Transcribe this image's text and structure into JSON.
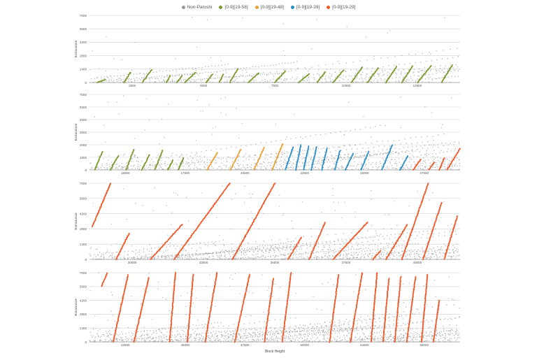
{
  "legend": [
    {
      "label": "Non-Patoshi",
      "color": "#9a9a9a"
    },
    {
      "label": "[0-9][19-58]",
      "color": "#7a9a2e"
    },
    {
      "label": "[0-9][19-48]",
      "color": "#e8a23a"
    },
    {
      "label": "[0-9][19-39]",
      "color": "#2a8fc8"
    },
    {
      "label": "[0-9][19-29]",
      "color": "#ef5a2a"
    }
  ],
  "colors": {
    "nonpatoshi": "#9a9a9a",
    "s58": "#7a9a2e",
    "s48": "#e8a23a",
    "s39": "#2a8fc8",
    "s29": "#ef5a2a",
    "grid": "#cfcfcf"
  },
  "chart_data": [
    {
      "type": "scatter",
      "xlabel": "",
      "ylabel": "Extranonce",
      "ylim": [
        0,
        7000
      ],
      "yticks": [
        "0",
        "1400",
        "2800",
        "4200",
        "5600",
        "7000"
      ],
      "xlim": [
        0,
        14000
      ],
      "xticks": [
        "2500",
        "5000",
        "7500",
        "10000",
        "12500"
      ],
      "series": [
        {
          "color_key": "s58",
          "segments": [
            [
              300,
              0,
              600,
              330
            ],
            [
              1300,
              0,
              1550,
              1050
            ],
            [
              2000,
              0,
              2350,
              1350
            ],
            [
              2900,
              0,
              3050,
              720
            ],
            [
              3300,
              0,
              3500,
              700
            ],
            [
              3600,
              0,
              4000,
              1050
            ],
            [
              4400,
              0,
              4650,
              880
            ],
            [
              4900,
              0,
              5050,
              850
            ],
            [
              5300,
              0,
              5600,
              1400
            ],
            [
              6000,
              0,
              6400,
              1000
            ],
            [
              7000,
              0,
              7400,
              1200
            ],
            [
              7900,
              0,
              8300,
              900
            ],
            [
              8600,
              0,
              8900,
              1100
            ],
            [
              9200,
              0,
              9600,
              1300
            ],
            [
              9900,
              0,
              10300,
              1600
            ],
            [
              10500,
              0,
              10900,
              1500
            ],
            [
              11200,
              0,
              11600,
              1650
            ],
            [
              11800,
              0,
              12200,
              1700
            ],
            [
              12400,
              0,
              12900,
              1750
            ],
            [
              13300,
              0,
              13700,
              1800
            ]
          ]
        }
      ]
    },
    {
      "type": "scatter",
      "xlabel": "",
      "ylabel": "Extranonce",
      "ylim": [
        0,
        7000
      ],
      "yticks": [
        "0",
        "1000",
        "2000",
        "3000",
        "4000",
        "5000",
        "7000"
      ],
      "xlim": [
        13800,
        28000
      ],
      "xticks": [
        "15000",
        "17500",
        "20000",
        "22500",
        "25000",
        "27500"
      ],
      "series": [
        {
          "color_key": "s58",
          "segments": [
            [
              14000,
              0,
              14300,
              1700
            ],
            [
              14600,
              0,
              14900,
              1300
            ],
            [
              15200,
              0,
              15500,
              1900
            ],
            [
              15800,
              0,
              16100,
              1400
            ],
            [
              16300,
              0,
              16600,
              1800
            ],
            [
              16800,
              0,
              17000,
              900
            ],
            [
              17200,
              0,
              17400,
              1100
            ]
          ]
        },
        {
          "color_key": "s48",
          "segments": [
            [
              18300,
              0,
              18700,
              1600
            ],
            [
              19200,
              0,
              19600,
              1900
            ],
            [
              20100,
              0,
              20500,
              2100
            ],
            [
              20800,
              0,
              21200,
              2400
            ]
          ]
        },
        {
          "color_key": "s39",
          "segments": [
            [
              21300,
              0,
              21600,
              2100
            ],
            [
              21700,
              0,
              21900,
              2300
            ],
            [
              22000,
              0,
              22200,
              2200
            ],
            [
              22300,
              0,
              22500,
              2100
            ],
            [
              22700,
              0,
              22900,
              2000
            ],
            [
              23200,
              0,
              23400,
              1800
            ],
            [
              23600,
              0,
              23900,
              1500
            ],
            [
              24200,
              0,
              24500,
              1700
            ],
            [
              25000,
              0,
              25400,
              2300
            ],
            [
              25700,
              0,
              26000,
              1300
            ]
          ]
        },
        {
          "color_key": "s29",
          "segments": [
            [
              26200,
              0,
              26500,
              1000
            ],
            [
              26800,
              0,
              27000,
              700
            ],
            [
              27200,
              0,
              27400,
              1100
            ],
            [
              27500,
              0,
              28000,
              2000
            ]
          ]
        }
      ]
    },
    {
      "type": "scatter",
      "xlabel": "",
      "ylabel": "Extranonce",
      "ylim": [
        0,
        7000
      ],
      "yticks": [
        "0",
        "1400",
        "2800",
        "4200",
        "5600",
        "7000"
      ],
      "xlim": [
        28000,
        42000
      ],
      "xticks": [
        "30000",
        "32500",
        "35000",
        "37500",
        "40000"
      ],
      "series": [
        {
          "color_key": "s29",
          "segments": [
            [
              28100,
              3000,
              28800,
              7000
            ],
            [
              29000,
              0,
              29500,
              2400
            ],
            [
              30300,
              0,
              31500,
              3200
            ],
            [
              31200,
              0,
              33300,
              7000
            ],
            [
              33400,
              0,
              35000,
              7000
            ],
            [
              35500,
              0,
              36000,
              2000
            ],
            [
              36300,
              0,
              36900,
              3400
            ],
            [
              37200,
              0,
              38500,
              3400
            ],
            [
              38700,
              0,
              39000,
              800
            ],
            [
              39200,
              0,
              40000,
              3200
            ],
            [
              39800,
              0,
              40800,
              7000
            ],
            [
              40600,
              0,
              41300,
              5200
            ],
            [
              41400,
              0,
              41900,
              4000
            ]
          ]
        }
      ]
    },
    {
      "type": "scatter",
      "xlabel": "Block Height",
      "ylabel": "Extranonce",
      "ylim": [
        0,
        7000
      ],
      "yticks": [
        "0",
        "1400",
        "2800",
        "4200",
        "5600",
        "7000"
      ],
      "xlim": [
        42000,
        54500
      ],
      "xticks": [
        "42500",
        "45000",
        "47500",
        "50000",
        "52500",
        "55000"
      ],
      "series": [
        {
          "color_key": "s29",
          "segments": [
            [
              42400,
              5600,
              42600,
              7000
            ],
            [
              42800,
              0,
              43300,
              6800
            ],
            [
              43500,
              0,
              44000,
              6500
            ],
            [
              44700,
              0,
              44900,
              7000
            ],
            [
              45300,
              0,
              45500,
              6800
            ],
            [
              45900,
              0,
              46300,
              7000
            ],
            [
              46900,
              0,
              47400,
              6800
            ],
            [
              47900,
              0,
              48200,
              6400
            ],
            [
              48500,
              0,
              48800,
              7000
            ],
            [
              50100,
              0,
              50400,
              6800
            ],
            [
              50800,
              0,
              51200,
              7000
            ],
            [
              51500,
              0,
              51700,
              7000
            ],
            [
              51900,
              0,
              52100,
              6400
            ],
            [
              52300,
              0,
              52500,
              6600
            ],
            [
              52700,
              0,
              53000,
              6600
            ],
            [
              53200,
              0,
              53400,
              6800
            ],
            [
              53600,
              0,
              53800,
              4200
            ]
          ]
        }
      ]
    }
  ]
}
